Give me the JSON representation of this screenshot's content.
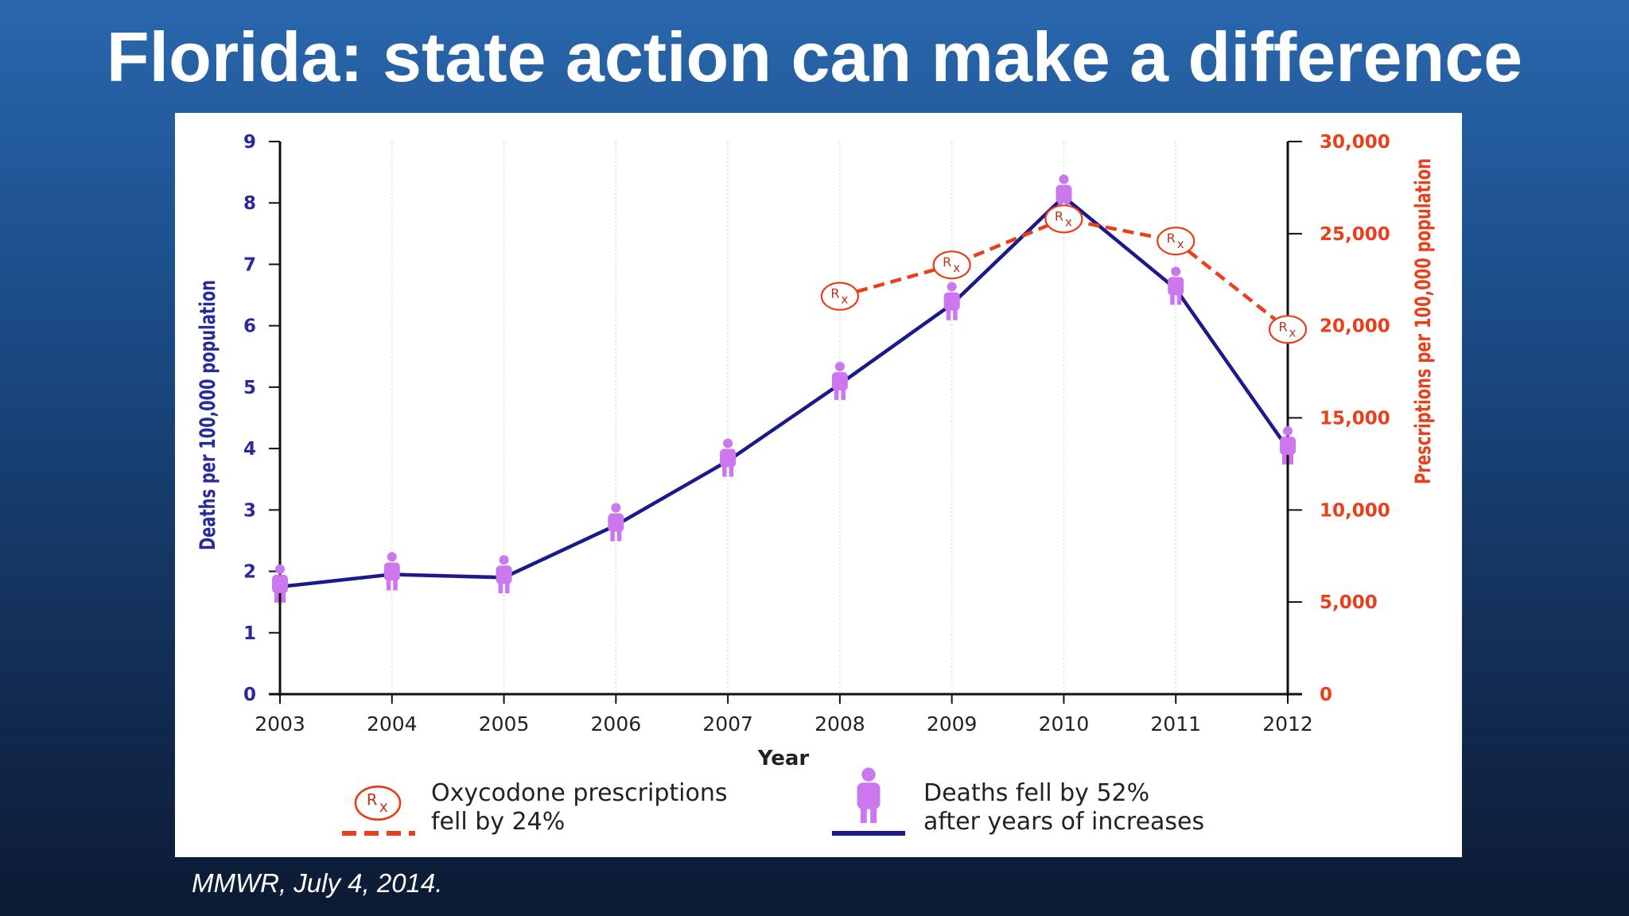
{
  "slide": {
    "title": "Florida: state action can make a difference",
    "citation": "MMWR, July 4, 2014."
  },
  "chart_data": {
    "type": "line",
    "x": [
      "2003",
      "2004",
      "2005",
      "2006",
      "2007",
      "2008",
      "2009",
      "2010",
      "2011",
      "2012"
    ],
    "xlabel": "Year",
    "ylabel_left": "Deaths per 100,000 population",
    "ylabel_right": "Prescriptions per 100,000 population",
    "ylim_left": [
      0,
      9
    ],
    "ylim_right": [
      0,
      30000
    ],
    "yticks_left": [
      "0",
      "1",
      "2",
      "3",
      "4",
      "5",
      "6",
      "7",
      "8",
      "9"
    ],
    "yticks_right": [
      "0",
      "5,000",
      "10,000",
      "15,000",
      "20,000",
      "25,000",
      "30,000"
    ],
    "series": [
      {
        "name": "Deaths fell by 52% after years of increases",
        "axis": "left",
        "style": "solid",
        "color": "#1a1a8c",
        "marker": "person-icon",
        "marker_color": "#cc77ee",
        "x": [
          "2003",
          "2004",
          "2005",
          "2006",
          "2007",
          "2008",
          "2009",
          "2010",
          "2011",
          "2012"
        ],
        "values": [
          1.75,
          1.95,
          1.9,
          2.75,
          3.8,
          5.05,
          6.35,
          8.1,
          6.6,
          4.0
        ]
      },
      {
        "name": "Oxycodone prescriptions fell by 24%",
        "axis": "right",
        "style": "dashed",
        "color": "#e8401c",
        "marker": "rx-icon",
        "x": [
          "2008",
          "2009",
          "2010",
          "2011",
          "2012"
        ],
        "values": [
          21600,
          23300,
          25800,
          24600,
          19800
        ]
      }
    ],
    "legend": [
      {
        "label_line1": "Oxycodone prescriptions",
        "label_line2": "fell by 24%",
        "marker": "rx-icon",
        "line": "dashed",
        "color": "#e8401c"
      },
      {
        "label_line1": "Deaths fell by 52%",
        "label_line2": "after years of increases",
        "marker": "person-icon",
        "line": "solid",
        "color": "#1a1a8c"
      }
    ],
    "grid": "vertical-dotted",
    "legend_position": "bottom"
  }
}
